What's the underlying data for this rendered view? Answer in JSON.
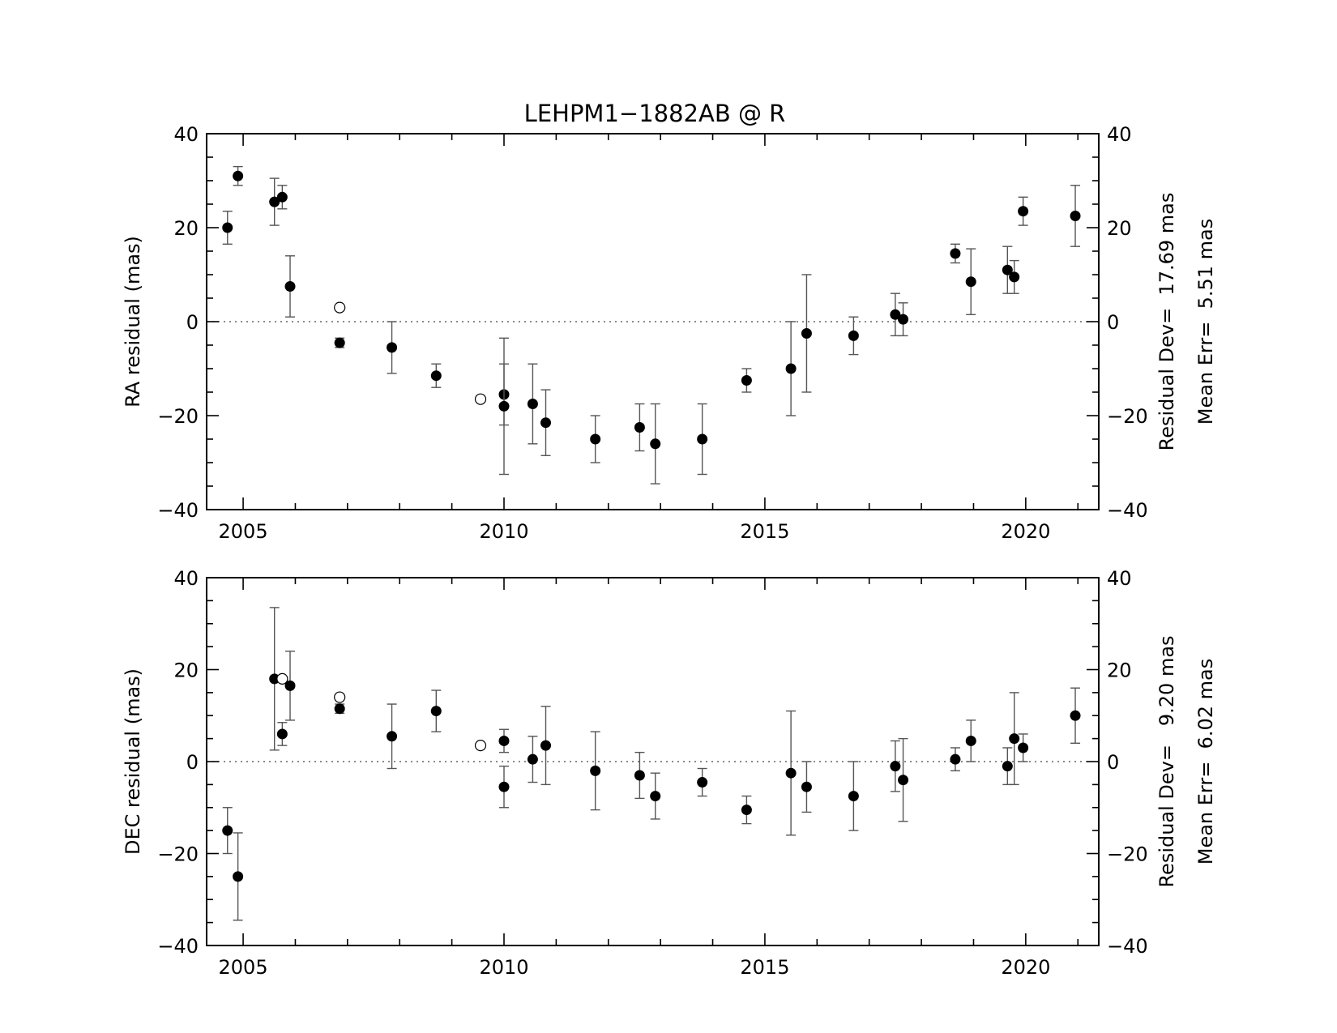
{
  "chart_data": [
    {
      "type": "scatter",
      "title": "LEHPM1−1882AB @ R",
      "ylabel": "RA residual (mas)",
      "xlabel": "",
      "xlim": [
        2004.3,
        2021.4
      ],
      "ylim": [
        -40,
        40
      ],
      "x_ticks": [
        2005,
        2010,
        2015,
        2020
      ],
      "x_tick_labels": [
        "2005",
        "2010",
        "2015",
        "2020"
      ],
      "y_ticks": [
        -40,
        -20,
        0,
        20,
        40
      ],
      "y_tick_labels": [
        "−40",
        "−20",
        "0",
        "20",
        "40"
      ],
      "zero_line": true,
      "stats": [
        "Residual Dev=  17.69 mas",
        "Mean Err=  5.51 mas"
      ],
      "series": [
        {
          "marker": "filled-circle",
          "points": [
            {
              "x": 2004.7,
              "y": 20.0,
              "err": 3.5
            },
            {
              "x": 2004.9,
              "y": 31.0,
              "err": 2.0
            },
            {
              "x": 2005.6,
              "y": 25.5,
              "err": 5.0
            },
            {
              "x": 2005.75,
              "y": 26.5,
              "err": 2.5
            },
            {
              "x": 2005.9,
              "y": 7.5,
              "err": 6.5
            },
            {
              "x": 2006.85,
              "y": -4.5,
              "err": 1.0
            },
            {
              "x": 2007.85,
              "y": -5.5,
              "err": 5.5
            },
            {
              "x": 2008.7,
              "y": -11.5,
              "err": 2.5
            },
            {
              "x": 2010.0,
              "y": -15.5,
              "err": 6.5
            },
            {
              "x": 2010.0,
              "y": -18.0,
              "err": 14.5
            },
            {
              "x": 2010.55,
              "y": -17.5,
              "err": 8.5
            },
            {
              "x": 2010.8,
              "y": -21.5,
              "err": 7.0
            },
            {
              "x": 2011.75,
              "y": -25.0,
              "err": 5.0
            },
            {
              "x": 2012.6,
              "y": -22.5,
              "err": 5.0
            },
            {
              "x": 2012.9,
              "y": -26.0,
              "err": 8.5
            },
            {
              "x": 2013.8,
              "y": -25.0,
              "err": 7.5
            },
            {
              "x": 2014.65,
              "y": -12.5,
              "err": 2.5
            },
            {
              "x": 2015.5,
              "y": -10.0,
              "err": 10.0
            },
            {
              "x": 2015.8,
              "y": -2.5,
              "err": 12.5
            },
            {
              "x": 2016.7,
              "y": -3.0,
              "err": 4.0
            },
            {
              "x": 2017.5,
              "y": 1.5,
              "err": 4.5
            },
            {
              "x": 2017.65,
              "y": 0.5,
              "err": 3.5
            },
            {
              "x": 2018.65,
              "y": 14.5,
              "err": 2.0
            },
            {
              "x": 2018.95,
              "y": 8.5,
              "err": 7.0
            },
            {
              "x": 2019.65,
              "y": 11.0,
              "err": 5.0
            },
            {
              "x": 2019.78,
              "y": 9.5,
              "err": 3.5
            },
            {
              "x": 2019.95,
              "y": 23.5,
              "err": 3.0
            },
            {
              "x": 2020.95,
              "y": 22.5,
              "err": 6.5
            }
          ]
        },
        {
          "marker": "open-circle",
          "points": [
            {
              "x": 2006.85,
              "y": 3.0
            },
            {
              "x": 2009.55,
              "y": -16.5
            }
          ]
        }
      ]
    },
    {
      "type": "scatter",
      "title": "",
      "ylabel": "DEC residual (mas)",
      "xlabel": "",
      "xlim": [
        2004.3,
        2021.4
      ],
      "ylim": [
        -40,
        40
      ],
      "x_ticks": [
        2005,
        2010,
        2015,
        2020
      ],
      "x_tick_labels": [
        "2005",
        "2010",
        "2015",
        "2020"
      ],
      "y_ticks": [
        -40,
        -20,
        0,
        20,
        40
      ],
      "y_tick_labels": [
        "−40",
        "−20",
        "0",
        "20",
        "40"
      ],
      "zero_line": true,
      "stats": [
        "Residual Dev=   9.20 mas",
        "Mean Err=  6.02 mas"
      ],
      "series": [
        {
          "marker": "filled-circle",
          "points": [
            {
              "x": 2004.7,
              "y": -15.0,
              "err": 5.0
            },
            {
              "x": 2004.9,
              "y": -25.0,
              "err": 9.5
            },
            {
              "x": 2005.6,
              "y": 18.0,
              "err": 15.5
            },
            {
              "x": 2005.75,
              "y": 6.0,
              "err": 2.5
            },
            {
              "x": 2005.9,
              "y": 16.5,
              "err": 7.5
            },
            {
              "x": 2006.85,
              "y": 11.5,
              "err": 1.0
            },
            {
              "x": 2007.85,
              "y": 5.5,
              "err": 7.0
            },
            {
              "x": 2008.7,
              "y": 11.0,
              "err": 4.5
            },
            {
              "x": 2010.0,
              "y": 4.5,
              "err": 2.5
            },
            {
              "x": 2010.0,
              "y": -5.5,
              "err": 4.5
            },
            {
              "x": 2010.55,
              "y": 0.5,
              "err": 5.0
            },
            {
              "x": 2010.8,
              "y": 3.5,
              "err": 8.5
            },
            {
              "x": 2011.75,
              "y": -2.0,
              "err": 8.5
            },
            {
              "x": 2012.6,
              "y": -3.0,
              "err": 5.0
            },
            {
              "x": 2012.9,
              "y": -7.5,
              "err": 5.0
            },
            {
              "x": 2013.8,
              "y": -4.5,
              "err": 3.0
            },
            {
              "x": 2014.65,
              "y": -10.5,
              "err": 3.0
            },
            {
              "x": 2015.5,
              "y": -2.5,
              "err": 13.5
            },
            {
              "x": 2015.8,
              "y": -5.5,
              "err": 5.5
            },
            {
              "x": 2016.7,
              "y": -7.5,
              "err": 7.5
            },
            {
              "x": 2017.5,
              "y": -1.0,
              "err": 5.5
            },
            {
              "x": 2017.65,
              "y": -4.0,
              "err": 9.0
            },
            {
              "x": 2018.65,
              "y": 0.5,
              "err": 2.5
            },
            {
              "x": 2018.95,
              "y": 4.5,
              "err": 4.5
            },
            {
              "x": 2019.65,
              "y": -1.0,
              "err": 4.0
            },
            {
              "x": 2019.78,
              "y": 5.0,
              "err": 10.0
            },
            {
              "x": 2019.95,
              "y": 3.0,
              "err": 3.0
            },
            {
              "x": 2020.95,
              "y": 10.0,
              "err": 6.0
            }
          ]
        },
        {
          "marker": "open-circle",
          "points": [
            {
              "x": 2005.75,
              "y": 18.0
            },
            {
              "x": 2006.85,
              "y": 14.0
            },
            {
              "x": 2009.55,
              "y": 3.5
            }
          ]
        }
      ]
    }
  ]
}
